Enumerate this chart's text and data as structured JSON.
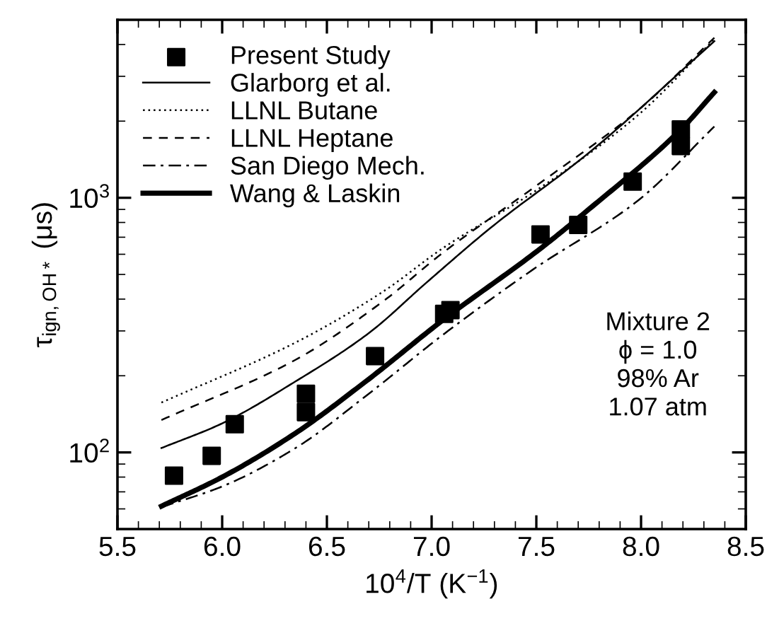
{
  "chart_data": {
    "type": "line",
    "xlabel": "10$^{4}$/T (K$^{−1}$)",
    "ylabel": "τ$_{ign,OH*}$ (μs)",
    "xlim": [
      5.5,
      8.5
    ],
    "xticks": [
      5.5,
      {
        "value": 6,
        "label": "6.0"
      },
      6.5,
      {
        "value": 7,
        "label": "7.0"
      },
      7.5,
      {
        "value": 8,
        "label": "8.0"
      },
      8.5
    ],
    "ylim": [
      50,
      5000
    ],
    "yticks": [
      {
        "value": 100,
        "label": "10$^{2}$"
      },
      {
        "value": 1000,
        "label": "10$^{3}$"
      }
    ],
    "log": "y",
    "legend": "top left",
    "grid": false,
    "series": [
      {
        "name": "Present Study",
        "type": "scatter",
        "marker": "square",
        "color": "#000000",
        "x": [
          5.77,
          5.95,
          6.06,
          6.4,
          6.4,
          6.73,
          7.06,
          7.09,
          7.52,
          7.7,
          7.96,
          8.19,
          8.19
        ],
        "values": [
          81,
          97,
          129,
          170,
          144,
          239,
          350,
          362,
          718,
          782,
          1157,
          1854,
          1597
        ]
      },
      {
        "name": "Glarborg et al.",
        "line_style": "solid",
        "color": "#000000",
        "x": [
          5.71,
          6.0,
          6.35,
          6.7,
          6.98,
          7.28,
          7.75,
          8.35
        ],
        "values": [
          104,
          130,
          190,
          294,
          468,
          760,
          1500,
          4120
        ]
      },
      {
        "name": "LLNL Butane",
        "line_style": "dotted",
        "color": "#000000",
        "x": [
          5.71,
          6.35,
          6.77,
          7.05,
          7.52,
          7.99,
          8.35
        ],
        "values": [
          157,
          270,
          429,
          631,
          1097,
          2128,
          4200
        ]
      },
      {
        "name": "LLNL Heptane",
        "line_style": "dashed",
        "color": "#000000",
        "x": [
          5.71,
          6.35,
          6.77,
          7.05,
          7.52,
          7.99,
          8.35
        ],
        "values": [
          134,
          231,
          393,
          605,
          1146,
          2222,
          4250
        ]
      },
      {
        "name": "San Diego Mech.",
        "line_style": "dashdot",
        "color": "#000000",
        "x": [
          5.71,
          6.0,
          6.35,
          6.7,
          7.05,
          7.48,
          7.99,
          8.35
        ],
        "values": [
          61,
          73.5,
          104,
          170,
          288,
          520,
          982,
          1905
        ]
      },
      {
        "name": "Wang & Laskin",
        "line_style": "solid",
        "color": "#000000",
        "x": [
          5.71,
          6.0,
          6.35,
          6.7,
          7.05,
          7.52,
          7.75,
          8.19,
          8.35
        ],
        "values": [
          61.5,
          80,
          119,
          194,
          329,
          632,
          900,
          1854,
          2595
        ]
      }
    ],
    "annotations": [
      {
        "text": "Mixture 2\nϕ = 1.0\n98% Ar\n1.07 atm"
      }
    ]
  }
}
